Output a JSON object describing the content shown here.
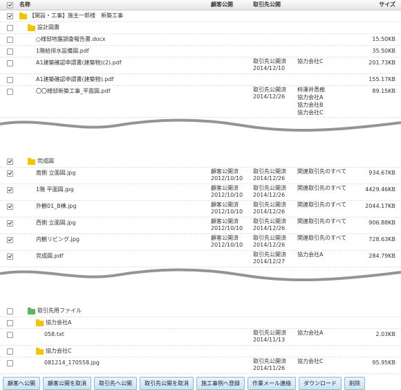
{
  "header": {
    "checked": true,
    "name": "名称",
    "customer": "顧客公開",
    "partner": "取引先公開",
    "size": "サイズ"
  },
  "tree": {
    "name": "【開設・工事】施主一郎様　新築工事",
    "checked": true,
    "icon_color": "#f5c400",
    "children": [
      {
        "name": "設計図書",
        "checked": false,
        "icon_color": "#f5c400",
        "children": [
          {
            "name": "○様邸地盤調査報告書.docx",
            "checked": false,
            "size": "15.50KB"
          },
          {
            "name": "1階給排水設備図.pdf",
            "checked": false,
            "size": "35.50KB"
          },
          {
            "name": "A1建築確認申請書(建築物)(2).pdf",
            "checked": false,
            "partner": {
              "status": "取引先公開済",
              "date": "2014/12/10"
            },
            "partners": [
              "協力会社C"
            ],
            "size": "201.73KB"
          },
          {
            "name": "A1建築確認申請書(建築物).pdf",
            "checked": false,
            "size": "155.17KB"
          },
          {
            "name": "〇〇様邸新築工事_平面図.pdf",
            "checked": false,
            "partner": {
              "status": "取引先公開済",
              "date": "2014/12/26"
            },
            "partners": [
              "柿澤井悉樹",
              "協力会社A",
              "協力会社B",
              "協力会社C"
            ],
            "size": "89.15KB"
          }
        ]
      },
      {
        "name": "完成図",
        "checked": true,
        "icon_color": "#f5c400",
        "children": [
          {
            "name": "南側 立面図.jpg",
            "checked": true,
            "customer": {
              "status": "顧客公開済",
              "date": "2012/10/10"
            },
            "partner": {
              "status": "取引先公開済",
              "date": "2014/12/26"
            },
            "partners": [
              "関連取引先のすべて"
            ],
            "size": "934.67KB"
          },
          {
            "name": "1階 平面図.jpg",
            "checked": true,
            "customer": {
              "status": "顧客公開済",
              "date": "2012/10/10"
            },
            "partner": {
              "status": "取引先公開済",
              "date": "2014/12/26"
            },
            "partners": [
              "関連取引先のすべて"
            ],
            "size": "4429.46KB"
          },
          {
            "name": "外観01_B棟.jpg",
            "checked": true,
            "customer": {
              "status": "顧客公開済",
              "date": "2012/10/10"
            },
            "partner": {
              "status": "取引先公開済",
              "date": "2014/12/26"
            },
            "partners": [
              "関連取引先のすべて"
            ],
            "size": "2044.17KB"
          },
          {
            "name": "西側 立面図.jpg",
            "checked": true,
            "customer": {
              "status": "顧客公開済",
              "date": "2012/10/10"
            },
            "partner": {
              "status": "取引先公開済",
              "date": "2014/12/26"
            },
            "partners": [
              "関連取引先のすべて"
            ],
            "size": "906.88KB"
          },
          {
            "name": "内観リビング.jpg",
            "checked": true,
            "customer": {
              "status": "顧客公開済",
              "date": "2012/10/10"
            },
            "partner": {
              "status": "取引先公開済",
              "date": "2014/12/26"
            },
            "partners": [
              "関連取引先のすべて"
            ],
            "size": "728.63KB"
          },
          {
            "name": "完成図.pdf",
            "checked": true,
            "partner": {
              "status": "取引先公開済",
              "date": "2014/12/27"
            },
            "partners": [
              "協力会社A"
            ],
            "size": "284.79KB"
          }
        ]
      },
      {
        "name": "取引先用ファイル",
        "checked": false,
        "icon_color": "#5cb85c",
        "children": [
          {
            "name": "協力会社A",
            "checked": false,
            "icon_color": "#f5c400",
            "children": [
              {
                "name": "058.txt",
                "checked": false,
                "partner": {
                  "status": "取引先公開済",
                  "date": "2014/11/13"
                },
                "partners": [
                  "協力会社A"
                ],
                "size": "2.03KB"
              }
            ]
          },
          {
            "name": "協力会社C",
            "checked": false,
            "icon_color": "#f5c400",
            "children": [
              {
                "name": "081214_170558.jpg",
                "checked": false,
                "partner": {
                  "status": "取引先公開済",
                  "date": "2014/11/26"
                },
                "partners": [
                  "協力会社C"
                ],
                "size": "95.95KB"
              }
            ]
          }
        ]
      }
    ]
  },
  "buttons": [
    "顧客へ公開",
    "顧客公開を取消",
    "取引先へ公開",
    "取引先公開を取消",
    "施工事例へ登録",
    "作業メール連絡",
    "ダウンロード",
    "削除"
  ]
}
